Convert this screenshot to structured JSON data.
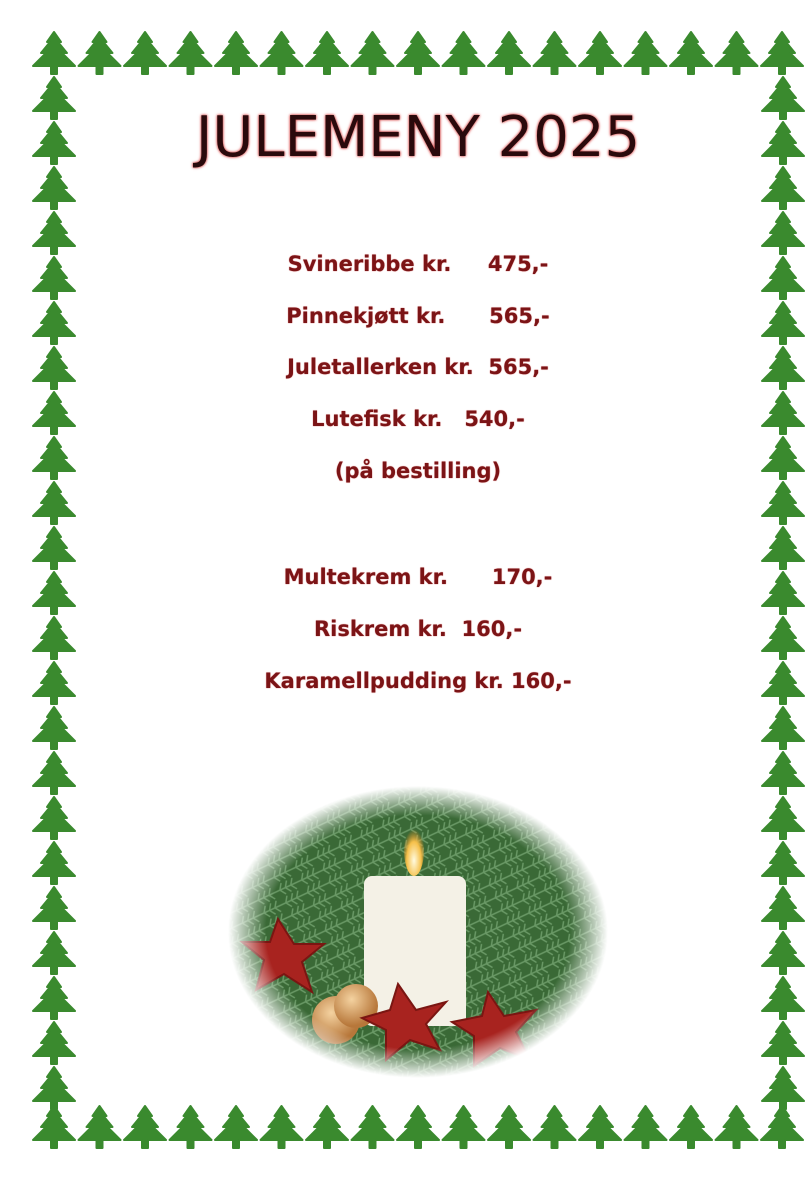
{
  "title": "JULEMENY 2025",
  "menu": {
    "main_courses": [
      {
        "text": "Svineribbe kr.     475,-"
      },
      {
        "text": "Pinnekjøtt kr.      565,-"
      },
      {
        "text": "Juletallerken kr.  565,-"
      },
      {
        "text": "Lutefisk kr.   540,-"
      },
      {
        "text": "(på bestilling)"
      }
    ],
    "desserts": [
      {
        "text": "Multekrem kr.      170,-"
      },
      {
        "text": "Riskrem kr.  160,-"
      },
      {
        "text": "Karamellpudding kr. 160,-"
      }
    ]
  },
  "colors": {
    "tree_green": "#3a8a2e",
    "text_red": "#7b1416",
    "title_dark": "#2a0a0c"
  },
  "decoration": {
    "border": "christmas-tree-icon",
    "photo": "candle-with-fir-and-stars"
  }
}
